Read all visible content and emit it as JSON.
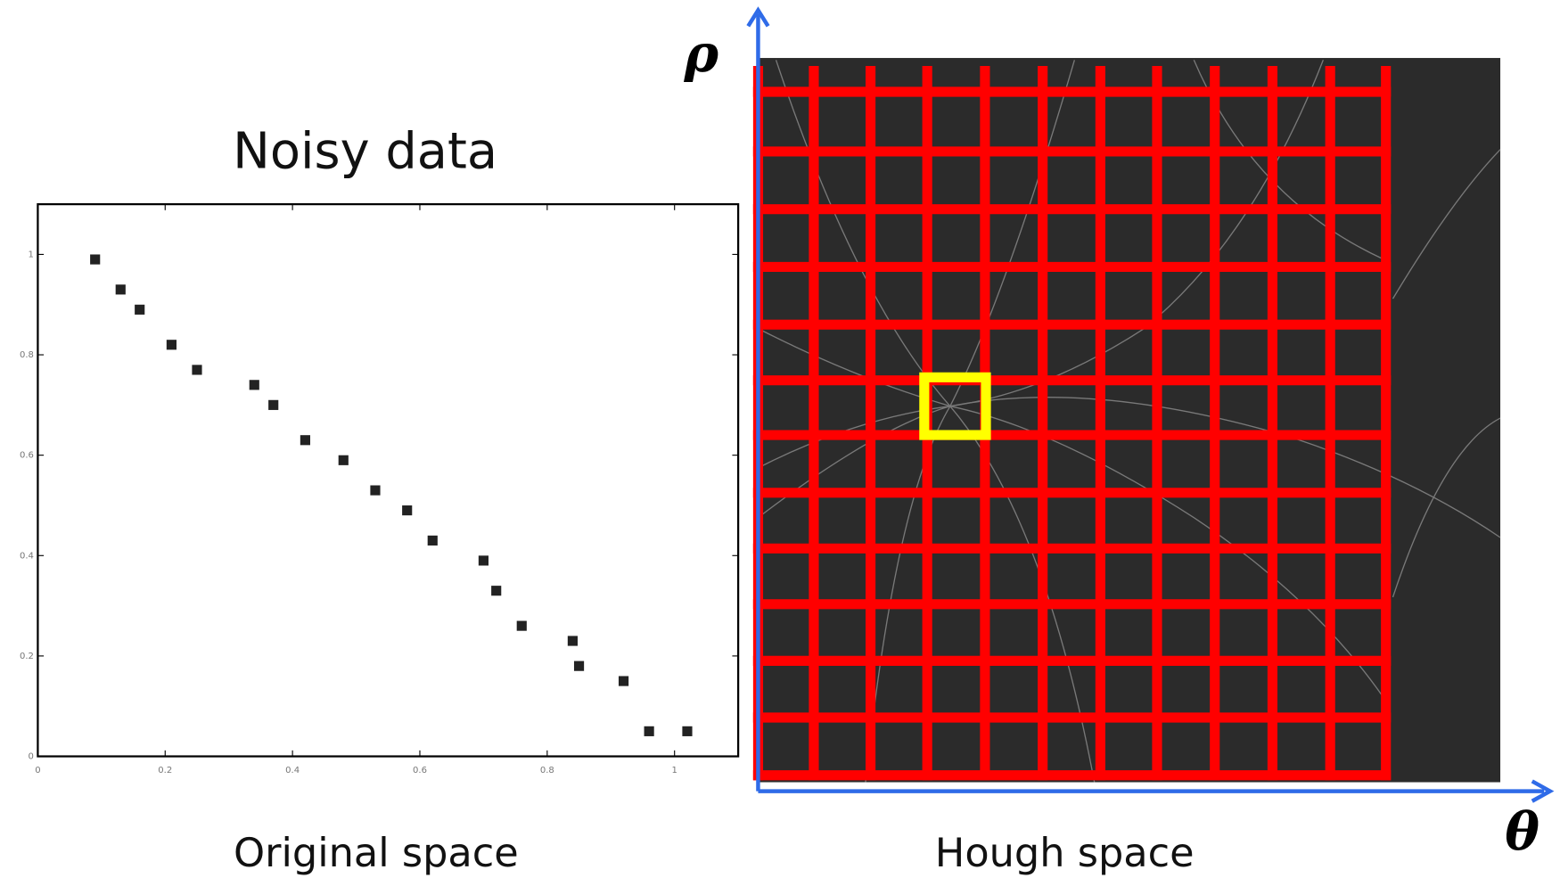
{
  "chart_data": {
    "type": "scatter",
    "title": "Noisy data",
    "caption": "Original space",
    "x": [
      0.09,
      0.13,
      0.16,
      0.21,
      0.25,
      0.34,
      0.37,
      0.42,
      0.48,
      0.53,
      0.58,
      0.62,
      0.7,
      0.72,
      0.76,
      0.84,
      0.85,
      0.92,
      0.96,
      1.02
    ],
    "values": [
      0.99,
      0.93,
      0.89,
      0.82,
      0.77,
      0.74,
      0.7,
      0.63,
      0.59,
      0.53,
      0.49,
      0.43,
      0.39,
      0.33,
      0.26,
      0.23,
      0.18,
      0.15,
      0.05,
      0.05
    ],
    "color": "#222222",
    "xlim": [
      0,
      1.1
    ],
    "ylim": [
      0,
      1.1
    ],
    "xticks": [
      0,
      0.2,
      0.4,
      0.6,
      0.8,
      1
    ],
    "yticks": [
      0,
      0.2,
      0.4,
      0.6,
      0.8,
      1
    ]
  },
  "hough": {
    "caption": "Hough space",
    "y_axis_label": "ρ",
    "x_axis_label": "θ"
  }
}
